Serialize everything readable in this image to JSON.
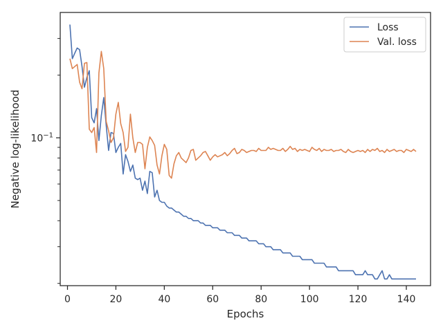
{
  "chart_data": {
    "type": "line",
    "xlabel": "Epochs",
    "ylabel": "Negative log-likelihood",
    "xlim": [
      -3,
      150
    ],
    "ylim": [
      0.0195,
      0.4
    ],
    "yscale": "log",
    "x_ticks": [
      0,
      20,
      40,
      60,
      80,
      100,
      120,
      140
    ],
    "y_major_tick": {
      "value": 0.1,
      "label": "10",
      "exponent": "−1"
    },
    "y_minor_ticks": [
      0.02,
      0.03,
      0.04,
      0.05,
      0.06,
      0.07,
      0.08,
      0.09,
      0.2,
      0.3
    ],
    "grid": false,
    "legend": {
      "position": "upper right"
    },
    "series": [
      {
        "name": "Loss",
        "color": "#4c72b0",
        "x_start": 1,
        "values": [
          0.35,
          0.24,
          0.255,
          0.27,
          0.265,
          0.22,
          0.175,
          0.195,
          0.21,
          0.125,
          0.118,
          0.138,
          0.097,
          0.128,
          0.156,
          0.115,
          0.087,
          0.106,
          0.105,
          0.085,
          0.09,
          0.094,
          0.067,
          0.083,
          0.077,
          0.069,
          0.074,
          0.064,
          0.063,
          0.064,
          0.056,
          0.062,
          0.054,
          0.069,
          0.068,
          0.052,
          0.056,
          0.05,
          0.049,
          0.049,
          0.047,
          0.046,
          0.046,
          0.045,
          0.044,
          0.044,
          0.043,
          0.042,
          0.042,
          0.041,
          0.041,
          0.04,
          0.04,
          0.04,
          0.039,
          0.039,
          0.038,
          0.038,
          0.038,
          0.037,
          0.037,
          0.037,
          0.036,
          0.036,
          0.036,
          0.035,
          0.035,
          0.035,
          0.034,
          0.034,
          0.034,
          0.033,
          0.033,
          0.033,
          0.032,
          0.032,
          0.032,
          0.032,
          0.031,
          0.031,
          0.031,
          0.03,
          0.03,
          0.03,
          0.029,
          0.029,
          0.029,
          0.029,
          0.028,
          0.028,
          0.028,
          0.028,
          0.027,
          0.027,
          0.027,
          0.027,
          0.026,
          0.026,
          0.026,
          0.026,
          0.026,
          0.025,
          0.025,
          0.025,
          0.025,
          0.025,
          0.024,
          0.024,
          0.024,
          0.024,
          0.024,
          0.023,
          0.023,
          0.023,
          0.023,
          0.023,
          0.023,
          0.023,
          0.022,
          0.022,
          0.022,
          0.022,
          0.023,
          0.022,
          0.022,
          0.022,
          0.021,
          0.021,
          0.022,
          0.023,
          0.021,
          0.021,
          0.022,
          0.021,
          0.021,
          0.021,
          0.021,
          0.021,
          0.021,
          0.021,
          0.021,
          0.021,
          0.021,
          0.021
        ]
      },
      {
        "name": "Val. loss",
        "color": "#dd8452",
        "x_start": 1,
        "values": [
          0.24,
          0.215,
          0.22,
          0.225,
          0.185,
          0.172,
          0.228,
          0.23,
          0.11,
          0.106,
          0.112,
          0.085,
          0.205,
          0.26,
          0.215,
          0.12,
          0.108,
          0.095,
          0.1,
          0.13,
          0.148,
          0.117,
          0.106,
          0.086,
          0.09,
          0.13,
          0.1,
          0.085,
          0.095,
          0.095,
          0.093,
          0.071,
          0.09,
          0.101,
          0.097,
          0.092,
          0.074,
          0.067,
          0.082,
          0.093,
          0.088,
          0.066,
          0.064,
          0.075,
          0.082,
          0.085,
          0.08,
          0.078,
          0.076,
          0.08,
          0.087,
          0.088,
          0.078,
          0.08,
          0.082,
          0.085,
          0.086,
          0.082,
          0.078,
          0.081,
          0.083,
          0.081,
          0.082,
          0.083,
          0.085,
          0.082,
          0.084,
          0.087,
          0.089,
          0.084,
          0.085,
          0.088,
          0.087,
          0.085,
          0.086,
          0.087,
          0.087,
          0.086,
          0.089,
          0.087,
          0.087,
          0.087,
          0.09,
          0.088,
          0.089,
          0.088,
          0.087,
          0.087,
          0.089,
          0.086,
          0.088,
          0.091,
          0.088,
          0.089,
          0.086,
          0.088,
          0.087,
          0.088,
          0.087,
          0.086,
          0.09,
          0.088,
          0.087,
          0.089,
          0.086,
          0.088,
          0.087,
          0.087,
          0.088,
          0.086,
          0.087,
          0.087,
          0.088,
          0.086,
          0.085,
          0.088,
          0.086,
          0.085,
          0.086,
          0.087,
          0.086,
          0.087,
          0.085,
          0.088,
          0.086,
          0.088,
          0.087,
          0.089,
          0.086,
          0.087,
          0.085,
          0.088,
          0.086,
          0.087,
          0.088,
          0.086,
          0.087,
          0.087,
          0.085,
          0.088,
          0.087,
          0.086,
          0.088,
          0.086
        ]
      }
    ]
  }
}
